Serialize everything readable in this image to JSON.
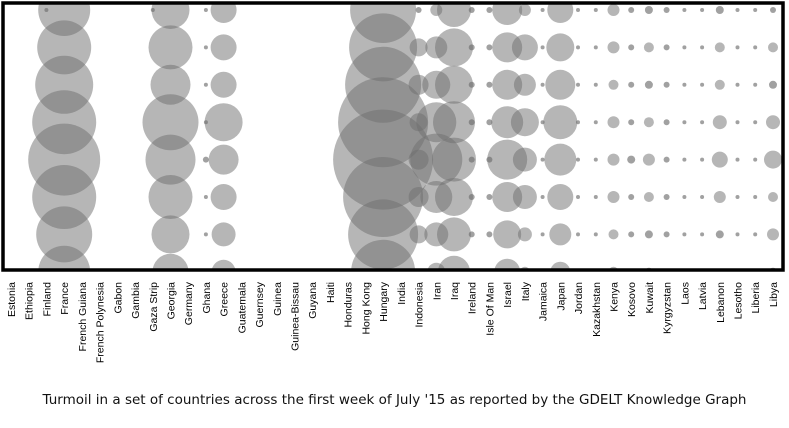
{
  "caption": "Turmoil in a set of countries across the first week of July '15 as reported by the GDELT Knowledge Graph",
  "chart_data": {
    "type": "scatter",
    "subtype": "bubble-matrix",
    "categories": [
      "Estonia",
      "Ethiopia",
      "Finland",
      "France",
      "French Guiana",
      "French Polynesia",
      "Gabon",
      "Gambia",
      "Gaza Strip",
      "Georgia",
      "Germany",
      "Ghana",
      "Greece",
      "Guatemala",
      "Guernsey",
      "Guinea",
      "Guinea-Bissau",
      "Guyana",
      "Haiti",
      "Honduras",
      "Hong Kong",
      "Hungary",
      "India",
      "Indonesia",
      "Iran",
      "Iraq",
      "Ireland",
      "Isle Of Man",
      "Israel",
      "Italy",
      "Jamaica",
      "Japan",
      "Jordan",
      "Kazakhstan",
      "Kenya",
      "Kosovo",
      "Kuwait",
      "Kyrgyzstan",
      "Laos",
      "Latvia",
      "Lebanon",
      "Lesotho",
      "Liberia",
      "Libya"
    ],
    "rows": 8,
    "bubble_color": "#6e6e6e",
    "grid": false,
    "legend": "none",
    "values": [
      [
        0,
        0,
        0,
        0,
        0,
        0,
        0,
        0
      ],
      [
        0,
        0,
        0,
        0,
        0,
        0,
        0,
        0
      ],
      [
        2,
        0,
        0,
        0,
        0,
        0,
        0,
        2
      ],
      [
        26,
        27,
        29,
        32,
        36,
        32,
        28,
        26
      ],
      [
        0,
        0,
        0,
        0,
        0,
        0,
        0,
        0
      ],
      [
        0,
        0,
        0,
        0,
        0,
        0,
        0,
        0
      ],
      [
        0,
        0,
        0,
        0,
        0,
        0,
        0,
        0
      ],
      [
        0,
        0,
        0,
        0,
        0,
        0,
        0,
        0
      ],
      [
        2,
        0,
        0,
        0,
        0,
        0,
        0,
        0
      ],
      [
        19,
        22,
        20,
        28,
        25,
        22,
        19,
        18
      ],
      [
        0,
        0,
        0,
        0,
        0,
        0,
        0,
        0
      ],
      [
        2,
        2,
        2,
        2,
        3,
        2,
        2,
        2
      ],
      [
        13,
        13,
        13,
        19,
        15,
        13,
        12,
        12
      ],
      [
        0,
        0,
        0,
        0,
        0,
        0,
        0,
        0
      ],
      [
        0,
        0,
        0,
        0,
        0,
        0,
        0,
        0
      ],
      [
        0,
        0,
        0,
        0,
        0,
        0,
        0,
        0
      ],
      [
        0,
        0,
        0,
        0,
        0,
        0,
        0,
        0
      ],
      [
        0,
        0,
        0,
        0,
        0,
        0,
        0,
        0
      ],
      [
        0,
        0,
        0,
        0,
        0,
        0,
        0,
        0
      ],
      [
        0,
        0,
        0,
        0,
        0,
        0,
        0,
        0
      ],
      [
        0,
        0,
        0,
        0,
        0,
        0,
        0,
        0
      ],
      [
        33,
        34,
        38,
        45,
        50,
        40,
        35,
        32
      ],
      [
        0,
        0,
        0,
        0,
        0,
        0,
        0,
        0
      ],
      [
        3,
        9,
        10,
        9,
        10,
        10,
        9,
        3
      ],
      [
        6,
        11,
        14,
        20,
        26,
        16,
        12,
        9
      ],
      [
        17,
        19,
        19,
        21,
        22,
        19,
        17,
        16
      ],
      [
        3,
        3,
        3,
        3,
        3,
        3,
        3,
        3
      ],
      [
        3,
        3,
        3,
        3,
        3,
        3,
        3,
        3
      ],
      [
        15,
        15,
        15,
        16,
        20,
        15,
        14,
        13
      ],
      [
        6,
        13,
        11,
        14,
        12,
        12,
        7,
        5
      ],
      [
        2,
        2,
        2,
        2,
        2,
        2,
        2,
        2
      ],
      [
        13,
        14,
        15,
        17,
        16,
        13,
        11,
        10
      ],
      [
        2,
        2,
        2,
        2,
        2,
        2,
        2,
        2
      ],
      [
        2,
        2,
        2,
        2,
        2,
        2,
        2,
        2
      ],
      [
        6,
        6,
        5,
        6,
        6,
        6,
        5,
        5
      ],
      [
        3,
        3,
        3,
        3,
        4,
        3,
        3,
        3
      ],
      [
        4,
        5,
        4,
        5,
        6,
        5,
        4,
        4
      ],
      [
        3,
        3,
        3,
        3,
        3,
        3,
        3,
        3
      ],
      [
        2,
        2,
        2,
        2,
        2,
        2,
        2,
        2
      ],
      [
        2,
        2,
        2,
        2,
        2,
        2,
        2,
        2
      ],
      [
        4,
        5,
        5,
        7,
        8,
        6,
        4,
        3
      ],
      [
        2,
        2,
        2,
        2,
        2,
        2,
        2,
        2
      ],
      [
        2,
        2,
        2,
        2,
        2,
        2,
        2,
        2
      ],
      [
        3,
        5,
        4,
        7,
        9,
        5,
        6,
        4
      ]
    ]
  }
}
